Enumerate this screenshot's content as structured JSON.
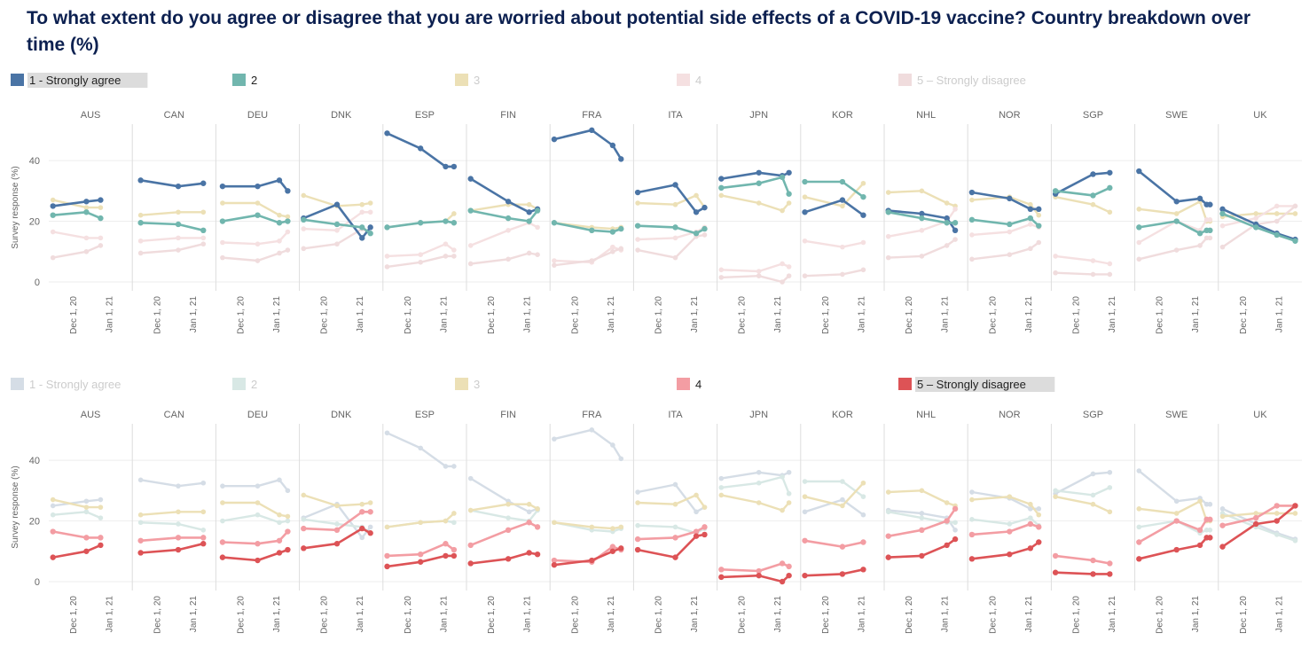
{
  "title": "To what extent do you agree or disagree that you are worried about potential side effects of a COVID-19 vaccine? Country breakdown over time (%)",
  "colors": {
    "s1": "#4a74a5",
    "s2": "#71b6ae",
    "s3": "#ece0b6",
    "s4": "#f39da3",
    "s5": "#dd5356",
    "s1_faded": "#d5dde6",
    "s2_faded": "#d8e8e5",
    "s4_faded": "#f5e0e1",
    "s5_faded": "#f0dcdd",
    "title": "#0c2050",
    "axis_text": "#666666",
    "divider": "#dddddd",
    "gridline": "#eeeeee"
  },
  "chart_data": {
    "type": "line",
    "ylabel": "Survey response (%)",
    "yticks": [
      0,
      20,
      40
    ],
    "ylim": [
      0,
      52
    ],
    "x_ticks": [
      "Dec 1, 20",
      "Jan 1, 21"
    ],
    "series_names": [
      "1 - Strongly agree",
      "2",
      "3",
      "4",
      "5 – Strongly disagree"
    ],
    "panels": [
      {
        "highlight": [
          1,
          2
        ],
        "legend_highlight": 1
      },
      {
        "highlight": [
          4,
          5
        ],
        "legend_highlight": 5
      }
    ],
    "countries": [
      {
        "name": "AUS",
        "x": [
          0.05,
          0.45,
          0.62
        ],
        "series": [
          [
            25,
            26.5,
            27
          ],
          [
            22,
            23,
            21
          ],
          [
            27,
            24.5,
            24.5
          ],
          [
            16.5,
            14.5,
            14.5
          ],
          [
            8,
            10,
            12
          ]
        ]
      },
      {
        "name": "CAN",
        "x": [
          0.1,
          0.55,
          0.85
        ],
        "series": [
          [
            33.5,
            31.5,
            32.5
          ],
          [
            19.5,
            19,
            17
          ],
          [
            22,
            23,
            23
          ],
          [
            13.5,
            14.5,
            14.5
          ],
          [
            9.5,
            10.5,
            12.5
          ]
        ]
      },
      {
        "name": "DEU",
        "x": [
          0.08,
          0.5,
          0.76,
          0.86
        ],
        "series": [
          [
            31.5,
            31.5,
            33.5,
            30
          ],
          [
            20,
            22,
            19.5,
            20
          ],
          [
            26,
            26,
            22,
            21.5
          ],
          [
            13,
            12.5,
            13.5,
            16.5
          ],
          [
            8,
            7,
            9.5,
            10.5
          ]
        ]
      },
      {
        "name": "DNK",
        "x": [
          0.05,
          0.45,
          0.75,
          0.85
        ],
        "series": [
          [
            21,
            25.5,
            14.5,
            18
          ],
          [
            20.5,
            19,
            18,
            16
          ],
          [
            28.5,
            25,
            25.5,
            26
          ],
          [
            17.5,
            17,
            23,
            23
          ],
          [
            11,
            12.5,
            17.5,
            16
          ]
        ]
      },
      {
        "name": "ESP",
        "x": [
          0.05,
          0.45,
          0.75,
          0.85
        ],
        "series": [
          [
            49,
            44,
            38,
            38
          ],
          [
            18,
            19.5,
            20,
            19.5
          ],
          [
            18,
            19.5,
            20,
            22.5
          ],
          [
            8.5,
            9,
            12.5,
            10.5
          ],
          [
            5,
            6.5,
            8.5,
            8.5
          ]
        ]
      },
      {
        "name": "FIN",
        "x": [
          0.05,
          0.5,
          0.75,
          0.85
        ],
        "series": [
          [
            34,
            26.5,
            23,
            24
          ],
          [
            23.5,
            21,
            20,
            23.5
          ],
          [
            23.5,
            25.5,
            25.5,
            24
          ],
          [
            12,
            17,
            19.5,
            18
          ],
          [
            6,
            7.5,
            9.5,
            9
          ]
        ]
      },
      {
        "name": "FRA",
        "x": [
          0.05,
          0.5,
          0.75,
          0.85
        ],
        "series": [
          [
            47,
            50,
            45,
            40.5
          ],
          [
            19.5,
            17,
            16.5,
            17.5
          ],
          [
            19.5,
            18,
            17.5,
            18
          ],
          [
            7,
            6.5,
            11.5,
            10.5
          ],
          [
            5.5,
            7,
            10,
            11
          ]
        ]
      },
      {
        "name": "ITA",
        "x": [
          0.05,
          0.5,
          0.75,
          0.85
        ],
        "series": [
          [
            29.5,
            32,
            23,
            24.5
          ],
          [
            18.5,
            18,
            16,
            17.5
          ],
          [
            26,
            25.5,
            28.5,
            24.5
          ],
          [
            14,
            14.5,
            16.5,
            18
          ],
          [
            10.5,
            8,
            15,
            15.5
          ]
        ]
      },
      {
        "name": "JPN",
        "x": [
          0.05,
          0.5,
          0.78,
          0.86
        ],
        "series": [
          [
            34,
            36,
            35,
            36
          ],
          [
            31,
            32.5,
            34.5,
            29
          ],
          [
            28.5,
            26,
            23.5,
            26
          ],
          [
            4,
            3.5,
            6,
            5
          ],
          [
            1.5,
            2,
            0,
            2
          ]
        ]
      },
      {
        "name": "KOR",
        "x": [
          0.05,
          0.5,
          0.75
        ],
        "series": [
          [
            23,
            27,
            22
          ],
          [
            33,
            33,
            28
          ],
          [
            28,
            25,
            32.5
          ],
          [
            13.5,
            11.5,
            13
          ],
          [
            2,
            2.5,
            4
          ]
        ]
      },
      {
        "name": "NHL",
        "x": [
          0.05,
          0.45,
          0.75,
          0.85
        ],
        "series": [
          [
            23.5,
            22.5,
            21,
            17
          ],
          [
            23,
            21,
            19.5,
            19.5
          ],
          [
            29.5,
            30,
            26,
            25
          ],
          [
            15,
            17,
            20,
            24
          ],
          [
            8,
            8.5,
            12,
            14
          ]
        ]
      },
      {
        "name": "NOR",
        "x": [
          0.05,
          0.5,
          0.75,
          0.85
        ],
        "series": [
          [
            29.5,
            27.5,
            24,
            24
          ],
          [
            20.5,
            19,
            21,
            18.5
          ],
          [
            27,
            28,
            25.5,
            22
          ],
          [
            15.5,
            16.5,
            19,
            18
          ],
          [
            7.5,
            9,
            11,
            13
          ]
        ]
      },
      {
        "name": "SGP",
        "x": [
          0.05,
          0.5,
          0.7
        ],
        "series": [
          [
            29,
            35.5,
            36
          ],
          [
            30,
            28.5,
            31
          ],
          [
            28,
            25.5,
            23
          ],
          [
            8.5,
            7,
            6
          ],
          [
            3,
            2.5,
            2.5
          ]
        ]
      },
      {
        "name": "SWE",
        "x": [
          0.05,
          0.5,
          0.78,
          0.86,
          0.9
        ],
        "series": [
          [
            36.5,
            26.5,
            27.5,
            25.5,
            25.5
          ],
          [
            18,
            20,
            16,
            17,
            17
          ],
          [
            24,
            22.5,
            26.5,
            20,
            20
          ],
          [
            13,
            20,
            17,
            20.5,
            20.5
          ],
          [
            7.5,
            10.5,
            12,
            14.5,
            14.5
          ]
        ]
      },
      {
        "name": "UK",
        "x": [
          0.05,
          0.45,
          0.7,
          0.92
        ],
        "series": [
          [
            24,
            19,
            16,
            14
          ],
          [
            22.5,
            18,
            15.5,
            13.5
          ],
          [
            21.5,
            22.5,
            22.5,
            22.5
          ],
          [
            18.5,
            21,
            25,
            25
          ],
          [
            11.5,
            19,
            20,
            25
          ]
        ]
      }
    ]
  }
}
